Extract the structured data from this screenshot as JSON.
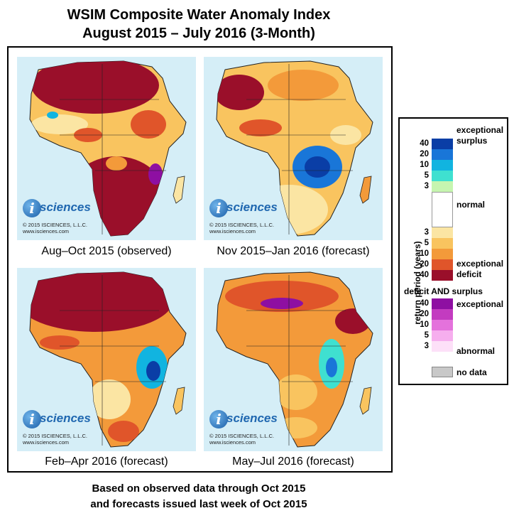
{
  "title_line1": "WSIM Composite Water Anomaly Index",
  "title_line2": "August 2015 – July 2016 (3-Month)",
  "panels": [
    {
      "caption": "Aug–Oct 2015 (observed)",
      "pattern": "severe-deficit"
    },
    {
      "caption": "Nov 2015–Jan 2016 (forecast)",
      "pattern": "central-surplus"
    },
    {
      "caption": "Feb–Apr 2016 (forecast)",
      "pattern": "north-deficit"
    },
    {
      "caption": "May–Jul 2016 (forecast)",
      "pattern": "mixed"
    }
  ],
  "logo": {
    "mark": "i",
    "word": "sciences",
    "copyright": "© 2015 ISCIENCES, L.L.C.",
    "url": "www.isciences.com"
  },
  "footer_line1": "Based on observed data through Oct 2015",
  "footer_line2": "and forecasts issued last week of Oct 2015",
  "legend": {
    "axis_label": "return period (years)",
    "surplus_label_1": "exceptional",
    "surplus_label_2": "surplus",
    "normal_label": "normal",
    "deficit_label_1": "exceptional",
    "deficit_label_2": "deficit",
    "both_title": "deficit AND surplus",
    "both_top_label": "exceptional",
    "both_bottom_label": "abnormal",
    "nodata_label": "no data",
    "surplus_ticks": [
      "40",
      "20",
      "10",
      "5",
      "3"
    ],
    "deficit_ticks": [
      "3",
      "5",
      "10",
      "20",
      "40"
    ],
    "both_ticks": [
      "40",
      "20",
      "10",
      "5",
      "3"
    ],
    "surplus_colors": [
      "#0a3ea6",
      "#1976d8",
      "#11b4e0",
      "#3fe0d0",
      "#c6f5b0"
    ],
    "normal_color": "#ffffff",
    "deficit_colors": [
      "#fbe5a3",
      "#f9c45f",
      "#f39a3a",
      "#e0552a",
      "#9a0f2a"
    ],
    "both_colors": [
      "#8e0fa2",
      "#c33bc0",
      "#e472dc",
      "#f6aeee",
      "#fde0f8"
    ],
    "nodata_color": "#c8c8c8"
  }
}
